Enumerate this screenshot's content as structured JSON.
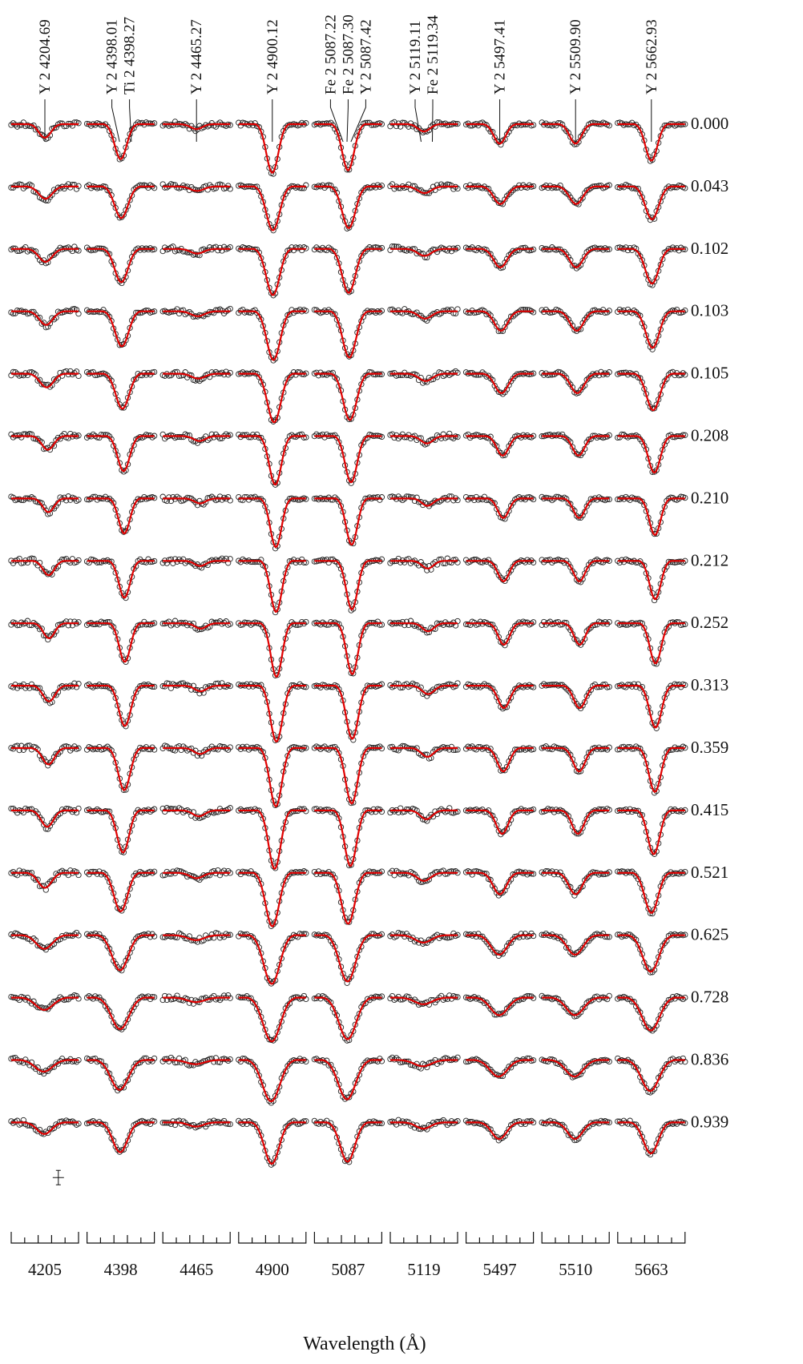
{
  "chart_data": {
    "type": "line",
    "title": "",
    "xlabel": "Wavelength (Å)",
    "ylabel": "",
    "grid": false,
    "colors": {
      "model": "#e00000",
      "observed": "#222222",
      "axis": "#111111"
    },
    "series_styles": {
      "observed": "open circles",
      "model": "solid red line"
    },
    "panels": [
      {
        "center": "4205",
        "lines": [
          {
            "label": "Y  2 4204.69",
            "offset": 0.0
          }
        ]
      },
      {
        "center": "4398",
        "lines": [
          {
            "label": "Y  2 4398.01",
            "offset": -0.1
          },
          {
            "label": "Ti 2 4398.27",
            "offset": 0.95
          }
        ]
      },
      {
        "center": "4465",
        "lines": [
          {
            "label": "Y  2 4465.27",
            "offset": 0.0
          }
        ]
      },
      {
        "center": "4900",
        "lines": [
          {
            "label": "Y  2 4900.12",
            "offset": 0.0
          }
        ]
      },
      {
        "center": "5087",
        "lines": [
          {
            "label": "Fe 2 5087.22",
            "offset": -0.45
          },
          {
            "label": "Fe 2 5087.30",
            "offset": -0.1
          },
          {
            "label": "Y  2 5087.42",
            "offset": 0.25
          }
        ]
      },
      {
        "center": "5119",
        "lines": [
          {
            "label": "Y  2 5119.11",
            "offset": -0.25
          },
          {
            "label": "Fe 2 5119.34",
            "offset": 0.75
          }
        ]
      },
      {
        "center": "5497",
        "lines": [
          {
            "label": "Y  2 5497.41",
            "offset": 0.0
          }
        ]
      },
      {
        "center": "5510",
        "lines": [
          {
            "label": "Y  2 5509.90",
            "offset": 0.0
          }
        ]
      },
      {
        "center": "5663",
        "lines": [
          {
            "label": "Y  2 5662.93",
            "offset": 0.0
          }
        ]
      }
    ],
    "phases": [
      "0.000",
      "0.043",
      "0.102",
      "0.103",
      "0.105",
      "0.208",
      "0.210",
      "0.212",
      "0.252",
      "0.313",
      "0.359",
      "0.415",
      "0.521",
      "0.625",
      "0.728",
      "0.836",
      "0.939"
    ],
    "line_depth_by_panel": [
      0.28,
      0.72,
      0.1,
      1.0,
      0.95,
      0.15,
      0.4,
      0.4,
      0.75
    ],
    "line_depth_factor_by_phase": [
      1.0,
      0.9,
      0.95,
      1.0,
      1.0,
      1.0,
      1.0,
      1.05,
      1.1,
      1.15,
      1.2,
      1.2,
      1.1,
      1.0,
      0.9,
      0.85,
      0.85
    ],
    "line_position_by_phase": [
      0.0,
      0.05,
      0.05,
      0.1,
      0.15,
      0.25,
      0.3,
      0.32,
      0.35,
      0.35,
      0.3,
      0.2,
      0.0,
      -0.05,
      -0.05,
      -0.1,
      -0.05
    ],
    "line_width_factor_by_phase": [
      0.9,
      1.0,
      1.0,
      1.0,
      1.0,
      0.9,
      0.85,
      0.85,
      0.85,
      0.9,
      0.9,
      0.9,
      1.0,
      1.2,
      1.3,
      1.3,
      1.1
    ],
    "error_bar": "shown in first panel, bottom row"
  }
}
